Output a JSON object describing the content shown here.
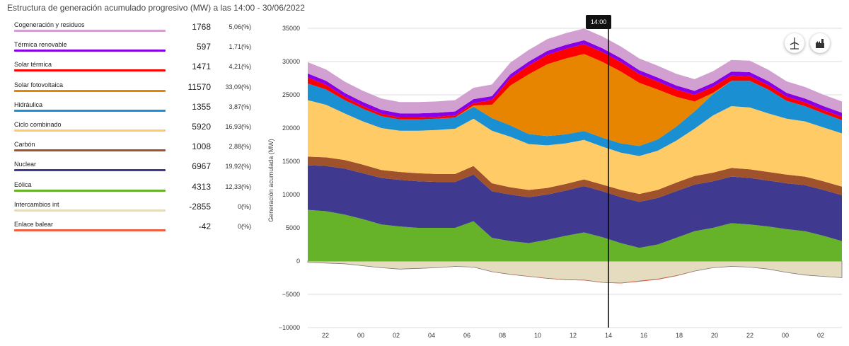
{
  "header": {
    "title": "Estructura de generación acumulado progresivo (MW) a las 14:00 - 30/06/2022"
  },
  "legend": [
    {
      "name": "Cogeneración y residuos",
      "value": "1768",
      "pct": "5,06(%)",
      "color": "#d1a0d1"
    },
    {
      "name": "Térmica renovable",
      "value": "597",
      "pct": "1,71(%)",
      "color": "#8a00e6"
    },
    {
      "name": "Solar térmica",
      "value": "1471",
      "pct": "4,21(%)",
      "color": "#ff0000"
    },
    {
      "name": "Solar fotovoltaica",
      "value": "11570",
      "pct": "33,09(%)",
      "color": "#e88500"
    },
    {
      "name": "Hidráulica",
      "value": "1355",
      "pct": "3,87(%)",
      "color": "#1a8fd1"
    },
    {
      "name": "Ciclo combinado",
      "value": "5920",
      "pct": "16,93(%)",
      "color": "#ffcb66"
    },
    {
      "name": "Carbón",
      "value": "1008",
      "pct": "2,88(%)",
      "color": "#a0522d"
    },
    {
      "name": "Nuclear",
      "value": "6967",
      "pct": "19,92(%)",
      "color": "#3f3a8f"
    },
    {
      "name": "Eólica",
      "value": "4313",
      "pct": "12,33(%)",
      "color": "#66b32a"
    },
    {
      "name": "Intercambios int",
      "value": "-2855",
      "pct": "0(%)",
      "color": "#e5dcc0"
    },
    {
      "name": "Enlace balear",
      "value": "-42",
      "pct": "0(%)",
      "color": "#f06040"
    }
  ],
  "tooltip": {
    "label": "14:00"
  },
  "icons": {
    "wind_icon": "wind-turbine-icon",
    "factory_icon": "factory-icon"
  },
  "chart_data": {
    "type": "area",
    "title": "Estructura de generación acumulado progresivo (MW) a las 14:00 - 30/06/2022",
    "ylabel": "Generación acumulada (MW)",
    "xlabel": "",
    "ylim": [
      -10000,
      35000
    ],
    "yticks": [
      "35000",
      "30000",
      "25000",
      "20000",
      "15000",
      "10000",
      "5000",
      "0",
      "−5000",
      "−10000"
    ],
    "yticks_values": [
      35000,
      30000,
      25000,
      20000,
      15000,
      10000,
      5000,
      0,
      -5000,
      -10000
    ],
    "xticks": [
      "22",
      "00",
      "02",
      "04",
      "06",
      "08",
      "10",
      "12",
      "14",
      "16",
      "18",
      "20",
      "22",
      "00",
      "02"
    ],
    "x_hours": [
      -2,
      -1,
      0,
      1,
      2,
      3,
      4,
      5,
      6,
      7,
      8,
      9,
      10,
      11,
      12,
      13,
      14,
      15,
      16,
      17,
      18,
      19,
      20,
      21,
      22,
      23,
      24,
      25,
      26,
      27
    ],
    "cursor_hour": 14,
    "series": [
      {
        "name": "Intercambios int",
        "values": [
          -200,
          -300,
          -400,
          -700,
          -1000,
          -1200,
          -1100,
          -1000,
          -800,
          -900,
          -1600,
          -2000,
          -2300,
          -2600,
          -2800,
          -2855,
          -3200,
          -3300,
          -3000,
          -2700,
          -2200,
          -1500,
          -1000,
          -800,
          -900,
          -1200,
          -1700,
          -2100,
          -2300,
          -2500
        ]
      },
      {
        "name": "Eólica",
        "values": [
          7700,
          7500,
          7000,
          6300,
          5500,
          5200,
          5000,
          5000,
          5000,
          6000,
          3500,
          3000,
          2700,
          3200,
          3800,
          4313,
          3600,
          2700,
          2000,
          2500,
          3500,
          4500,
          5000,
          5700,
          5500,
          5200,
          4800,
          4500,
          3800,
          3000
        ]
      },
      {
        "name": "Nuclear",
        "values": [
          6700,
          6800,
          6900,
          6900,
          7000,
          7000,
          7000,
          6900,
          6900,
          7000,
          7000,
          7000,
          6900,
          6800,
          6800,
          6967,
          6900,
          6900,
          6900,
          7000,
          7000,
          7000,
          7000,
          7000,
          7000,
          6900,
          6900,
          6900,
          6900,
          6900
        ]
      },
      {
        "name": "Carbón",
        "values": [
          1300,
          1300,
          1300,
          1300,
          1200,
          1200,
          1200,
          1200,
          1200,
          1300,
          1200,
          1100,
          1100,
          1000,
          1000,
          1008,
          1000,
          1100,
          1200,
          1200,
          1300,
          1300,
          1300,
          1300,
          1300,
          1300,
          1300,
          1300,
          1300,
          1300
        ]
      },
      {
        "name": "Ciclo combinado",
        "values": [
          8500,
          7900,
          7000,
          6500,
          6300,
          6200,
          6400,
          6600,
          6800,
          7100,
          7900,
          7600,
          6900,
          6400,
          6100,
          5920,
          5700,
          5600,
          5700,
          5900,
          6300,
          7100,
          8600,
          9300,
          9300,
          8800,
          8400,
          8300,
          8100,
          8000
        ]
      },
      {
        "name": "Hidráulica",
        "values": [
          2500,
          2300,
          2000,
          1900,
          1800,
          1700,
          1700,
          1700,
          1700,
          1800,
          1900,
          1700,
          1500,
          1400,
          1350,
          1355,
          1350,
          1400,
          1500,
          1700,
          2100,
          2600,
          3200,
          3800,
          4000,
          3600,
          2700,
          2300,
          2100,
          2000
        ]
      },
      {
        "name": "Solar fotovoltaica",
        "values": [
          0,
          0,
          0,
          0,
          0,
          0,
          0,
          0,
          0,
          200,
          2000,
          6000,
          9000,
          10800,
          11400,
          11570,
          11400,
          10800,
          9500,
          7500,
          4500,
          1500,
          200,
          0,
          0,
          0,
          0,
          0,
          0,
          0
        ]
      },
      {
        "name": "Solar térmica",
        "values": [
          900,
          700,
          500,
          400,
          350,
          300,
          300,
          300,
          300,
          350,
          700,
          1100,
          1300,
          1400,
          1450,
          1471,
          1450,
          1400,
          1300,
          1200,
          1100,
          1000,
          900,
          800,
          700,
          650,
          600,
          550,
          500,
          500
        ]
      },
      {
        "name": "Térmica renovable",
        "values": [
          600,
          600,
          600,
          600,
          600,
          600,
          600,
          600,
          600,
          600,
          600,
          600,
          600,
          600,
          600,
          597,
          600,
          600,
          600,
          600,
          600,
          600,
          600,
          600,
          600,
          600,
          600,
          600,
          600,
          600
        ]
      },
      {
        "name": "Cogeneración y residuos",
        "values": [
          1700,
          1700,
          1700,
          1700,
          1700,
          1700,
          1700,
          1700,
          1700,
          1700,
          1750,
          1750,
          1760,
          1760,
          1765,
          1768,
          1770,
          1770,
          1770,
          1770,
          1760,
          1750,
          1750,
          1740,
          1740,
          1730,
          1720,
          1720,
          1710,
          1700
        ]
      },
      {
        "name": "Enlace balear",
        "values": [
          0,
          0,
          0,
          0,
          0,
          0,
          0,
          0,
          0,
          0,
          -10,
          -20,
          -30,
          -40,
          -42,
          -42,
          -42,
          -50,
          -80,
          -100,
          -60,
          -30,
          0,
          0,
          0,
          0,
          0,
          0,
          0,
          0
        ]
      }
    ]
  }
}
